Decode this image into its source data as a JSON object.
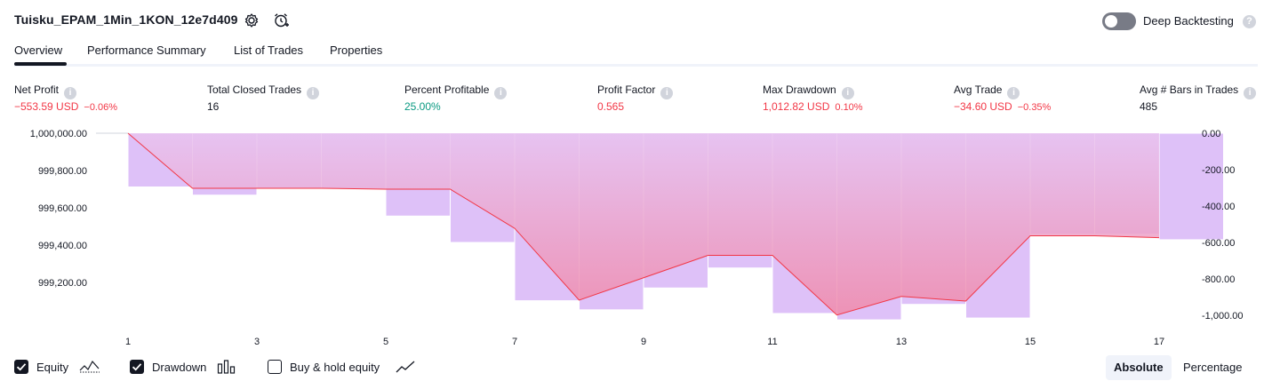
{
  "header": {
    "strategy_title": "Tuisku_EPAM_1Min_1KON_12e7d409",
    "deep_backtesting_label": "Deep Backtesting",
    "help_glyph": "?"
  },
  "tabs": [
    {
      "label": "Overview"
    },
    {
      "label": "Performance Summary"
    },
    {
      "label": "List of Trades"
    },
    {
      "label": "Properties"
    }
  ],
  "metrics": {
    "info_glyph": "i",
    "net_profit": {
      "label": "Net Profit",
      "value": "−553.59 USD",
      "pct": "−0.06%"
    },
    "total_closed_trades": {
      "label": "Total Closed Trades",
      "value": "16"
    },
    "percent_profitable": {
      "label": "Percent Profitable",
      "value": "25.00%"
    },
    "profit_factor": {
      "label": "Profit Factor",
      "value": "0.565"
    },
    "max_drawdown": {
      "label": "Max Drawdown",
      "value": "1,012.82 USD",
      "pct": "0.10%"
    },
    "avg_trade": {
      "label": "Avg Trade",
      "value": "−34.60 USD",
      "pct": "−0.35%"
    },
    "avg_bars": {
      "label": "Avg # Bars in Trades",
      "value": "485"
    }
  },
  "chart_data": {
    "type": "area",
    "left_axis": {
      "ticks": [
        "1,000,000.00",
        "999,800.00",
        "999,600.00",
        "999,400.00",
        "999,200.00"
      ],
      "range": [
        999000,
        1000000
      ]
    },
    "right_axis": {
      "ticks": [
        "0.00",
        "-200.00",
        "-400.00",
        "-600.00",
        "-800.00",
        "-1,000.00"
      ],
      "range": [
        -1100,
        0
      ]
    },
    "x_ticks": [
      "1",
      "3",
      "5",
      "7",
      "9",
      "11",
      "13",
      "15",
      "17"
    ],
    "equity_series": {
      "name": "Equity",
      "x": [
        1,
        2,
        3,
        4,
        5,
        6,
        7,
        8,
        9,
        10,
        11,
        12,
        13,
        14,
        15,
        16,
        17
      ],
      "values": [
        1000000,
        999705,
        999705,
        999705,
        999700,
        999700,
        999490,
        999105,
        999225,
        999345,
        999345,
        999025,
        999125,
        999100,
        999450,
        999450,
        999440
      ]
    },
    "drawdown_series": {
      "name": "Drawdown",
      "trades": [
        1,
        2,
        3,
        4,
        5,
        6,
        7,
        8,
        9,
        10,
        11,
        12,
        13,
        14,
        15,
        16,
        17
      ],
      "values": [
        -295,
        -340,
        -305,
        -305,
        -455,
        -600,
        -920,
        -970,
        -850,
        -740,
        -990,
        -1025,
        -940,
        -1015,
        -555,
        -555,
        -585
      ]
    },
    "grid": false,
    "colors": {
      "equity_line": "#f23645",
      "drawdown_bar": "#cda0f4",
      "equity_fill_top": "#e8c3f0",
      "equity_fill_bottom": "#f08aaa"
    }
  },
  "legend": {
    "equity": {
      "label": "Equity",
      "checked": true
    },
    "drawdown": {
      "label": "Drawdown",
      "checked": true
    },
    "buy_hold": {
      "label": "Buy & hold equity",
      "checked": false
    }
  },
  "mode_toggle": {
    "absolute": "Absolute",
    "percentage": "Percentage",
    "active": "Absolute"
  }
}
